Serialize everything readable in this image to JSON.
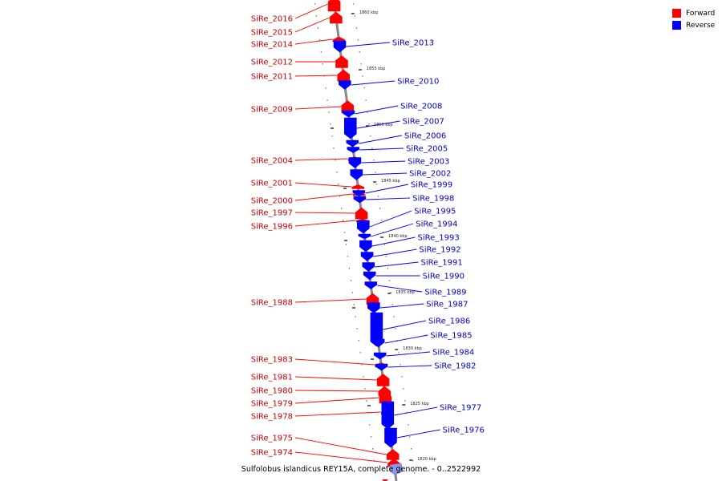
{
  "legend": {
    "forward": {
      "label": "Forward",
      "color": "#ff0000"
    },
    "reverse": {
      "label": "Reverse",
      "color": "#0000ff"
    }
  },
  "caption": "Sulfolobus islandicus REY15A, complete genome. - 0..2522992",
  "ticks": [
    "1860 kbp",
    "1855 kbp",
    "1850 kbp",
    "1845 kbp",
    "1840 kbp",
    "1835 kbp",
    "1830 kbp",
    "1825 kbp",
    "1820 kbp"
  ],
  "genes_forward": [
    "SiRe_2016",
    "SiRe_2015",
    "SiRe_2014",
    "SiRe_2012",
    "SiRe_2011",
    "SiRe_2009",
    "SiRe_2004",
    "SiRe_2001",
    "SiRe_2000",
    "SiRe_1997",
    "SiRe_1996",
    "SiRe_1988",
    "SiRe_1983",
    "SiRe_1981",
    "SiRe_1980",
    "SiRe_1979",
    "SiRe_1978",
    "SiRe_1975",
    "SiRe_1974"
  ],
  "genes_reverse": [
    "SiRe_2013",
    "SiRe_2010",
    "SiRe_2008",
    "SiRe_2007",
    "SiRe_2006",
    "SiRe_2005",
    "SiRe_2003",
    "SiRe_2002",
    "SiRe_1999",
    "SiRe_1998",
    "SiRe_1995",
    "SiRe_1994",
    "SiRe_1993",
    "SiRe_1992",
    "SiRe_1991",
    "SiRe_1990",
    "SiRe_1989",
    "SiRe_1987",
    "SiRe_1986",
    "SiRe_1985",
    "SiRe_1984",
    "SiRe_1982",
    "SiRe_1977",
    "SiRe_1976"
  ]
}
